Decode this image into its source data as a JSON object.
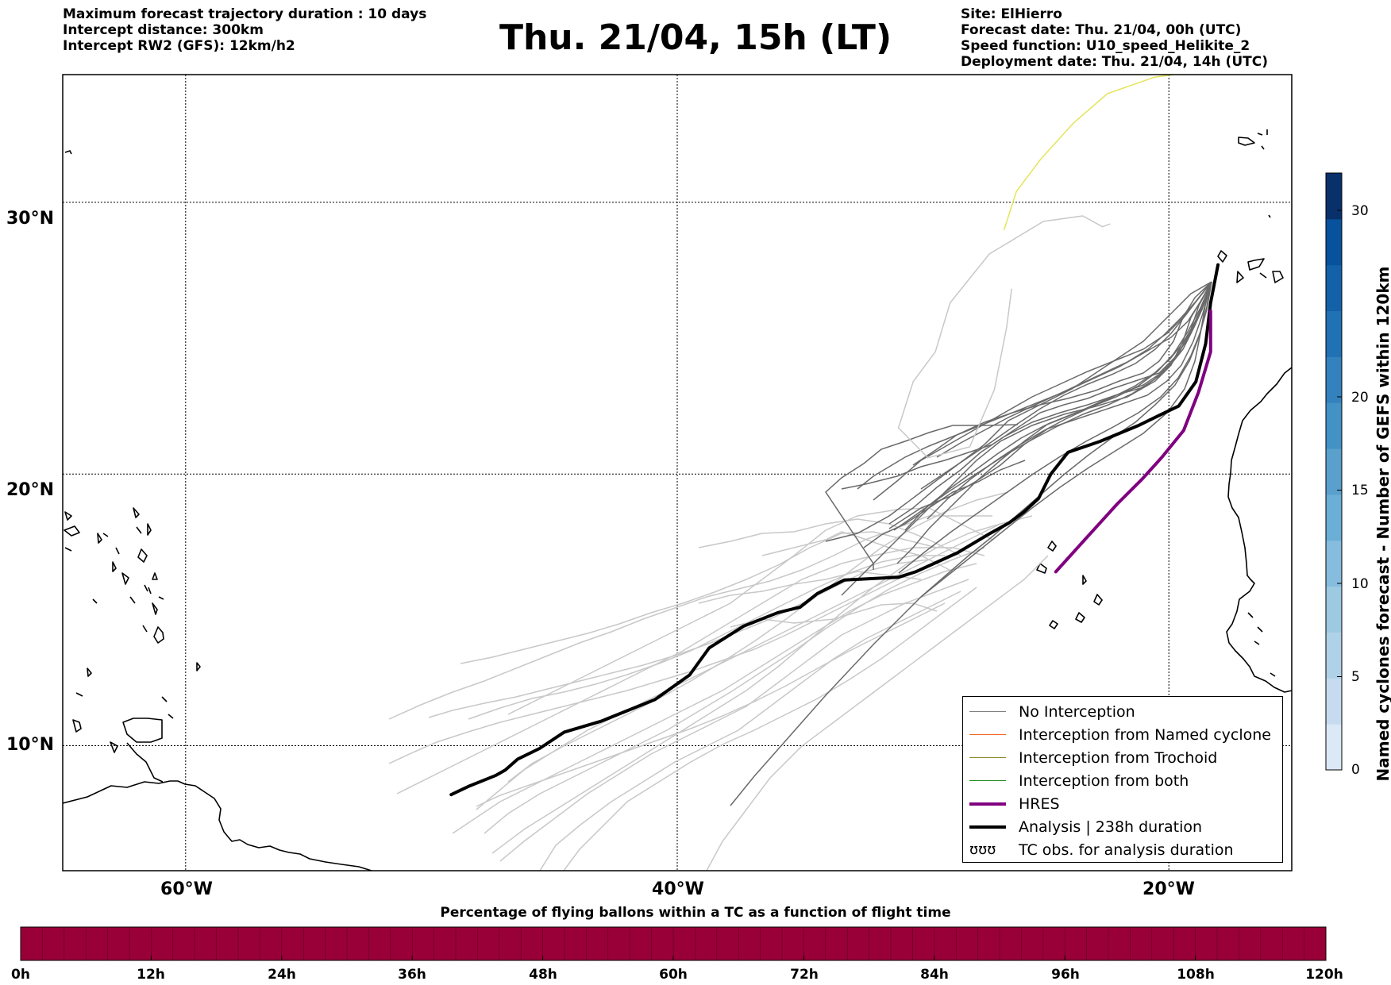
{
  "header_left": {
    "line1": "Maximum forecast trajectory duration : 10 days",
    "line2": "Intercept distance: 300km",
    "line3": "Intercept RW2 (GFS):  12km/h2"
  },
  "title": "Thu. 21/04, 15h (LT)",
  "header_right": {
    "line1": "Site: ElHierro",
    "line2": "Forecast date: Thu. 21/04, 00h (UTC)",
    "line3": "Speed function: U10_speed_Helikite_2",
    "line4": "Deployment date: Thu. 21/04, 14h (UTC)"
  },
  "map": {
    "lat_labels": [
      "30°N",
      "20°N",
      "10°N"
    ],
    "lon_labels": [
      "60°W",
      "40°W",
      "20°W"
    ],
    "lat_values": [
      30,
      20,
      10
    ],
    "lon_values": [
      -60,
      -40,
      -20
    ],
    "lon_range": [
      -65,
      -15
    ],
    "lat_range": [
      5.4,
      34.7
    ],
    "grid": true,
    "site_marker": {
      "lat": 27.7,
      "lon": -18.0
    }
  },
  "legend": {
    "items": [
      {
        "label": "No Interception",
        "color": "#7f7f7f",
        "width": 1.5,
        "style": "line"
      },
      {
        "label": "Interception from Named cyclone",
        "color": "#f26522",
        "width": 1.5,
        "style": "line"
      },
      {
        "label": "Interception from Trochoid",
        "color": "#8b8b2a",
        "width": 1.5,
        "style": "line"
      },
      {
        "label": "Interception from both",
        "color": "#228b22",
        "width": 1.5,
        "style": "line"
      },
      {
        "label": "HRES",
        "color": "#800080",
        "width": 4,
        "style": "line"
      },
      {
        "label": "Analysis | 238h duration",
        "color": "#000000",
        "width": 4,
        "style": "line"
      },
      {
        "label": "TC obs. for analysis duration",
        "color": "#000000",
        "style": "glyph",
        "glyph": "ʊʊʊ"
      }
    ]
  },
  "colorbar_v": {
    "label": "Named cyclones forecast - Number of GEFS within 120km",
    "ticks": [
      "0",
      "5",
      "10",
      "15",
      "20",
      "30"
    ],
    "tick_values": [
      0,
      5,
      10,
      15,
      20,
      30
    ],
    "max": 32,
    "colors": [
      "#dbe8f6",
      "#c6dbef",
      "#b0d2e8",
      "#9ecae1",
      "#86bcdd",
      "#6baed6",
      "#5aa0cd",
      "#4292c6",
      "#3382bd",
      "#2171b5",
      "#1361a9",
      "#08519c",
      "#08306b"
    ]
  },
  "colorbar_h": {
    "title": "Percentage of flying ballons within a TC as a function of flight time",
    "ticks": [
      "0h",
      "12h",
      "24h",
      "36h",
      "48h",
      "60h",
      "72h",
      "84h",
      "96h",
      "108h",
      "120h"
    ],
    "color": "#9a0038"
  },
  "chart_data": {
    "type": "line",
    "title": "Thu. 21/04, 15h (LT)",
    "xlabel": "",
    "ylabel": "",
    "xlim": [
      -65,
      -15
    ],
    "ylim": [
      5.4,
      34.7
    ],
    "series": [
      {
        "name": "Analysis | 238h duration",
        "color": "#000000",
        "width": 4,
        "x": [
          -18.0,
          -18.3,
          -18.5,
          -18.9,
          -19.6,
          -20.3,
          -21.2,
          -22.8,
          -24.1,
          -24.8,
          -25.3,
          -25.9,
          -26.5,
          -27.3,
          -28.6,
          -30.3,
          -31.0,
          -33.2,
          -34.3,
          -35.0,
          -35.9,
          -37.3,
          -38.7,
          -39.5,
          -40.9,
          -43.1,
          -44.6,
          -45.6,
          -46.5,
          -47.0,
          -47.4,
          -48.5,
          -49.2
        ],
        "y": [
          27.7,
          26.3,
          24.8,
          23.4,
          22.5,
          22.2,
          21.8,
          21.2,
          20.8,
          20.0,
          19.1,
          18.6,
          18.2,
          17.8,
          17.1,
          16.4,
          16.2,
          16.1,
          15.6,
          15.1,
          14.9,
          14.4,
          13.6,
          12.6,
          11.7,
          10.9,
          10.5,
          9.9,
          9.5,
          9.1,
          8.9,
          8.5,
          8.2
        ]
      },
      {
        "name": "HRES",
        "color": "#800080",
        "width": 4,
        "x": [
          -18.3,
          -18.3,
          -18.8,
          -19.4,
          -20.3,
          -21.1,
          -22.1,
          -23.3,
          -24.6
        ],
        "y": [
          26.0,
          24.5,
          23.0,
          21.6,
          20.6,
          19.8,
          18.9,
          17.7,
          16.4
        ]
      },
      {
        "name": "No Interception (arc)",
        "color": "#c8c8c8",
        "width": 1.5,
        "x": [
          -22.4,
          -22.7,
          -23.5,
          -25.1,
          -27.3,
          -28.9,
          -29.5,
          -30.4,
          -31.0,
          -29.8,
          -28.1,
          -27.1,
          -26.6,
          -26.4
        ],
        "y": [
          29.2,
          29.1,
          29.5,
          29.3,
          28.1,
          26.3,
          24.5,
          23.4,
          21.7,
          20.6,
          21.0,
          23.1,
          25.4,
          26.8
        ]
      },
      {
        "name": "Yellow path",
        "color": "#e4e45a",
        "width": 1.5,
        "x": [
          -26.7,
          -26.2,
          -25.2,
          -23.9,
          -22.5,
          -20.6,
          -19.8
        ],
        "y": [
          29.0,
          30.4,
          31.6,
          32.9,
          34.0,
          34.6,
          34.7
        ]
      }
    ]
  }
}
